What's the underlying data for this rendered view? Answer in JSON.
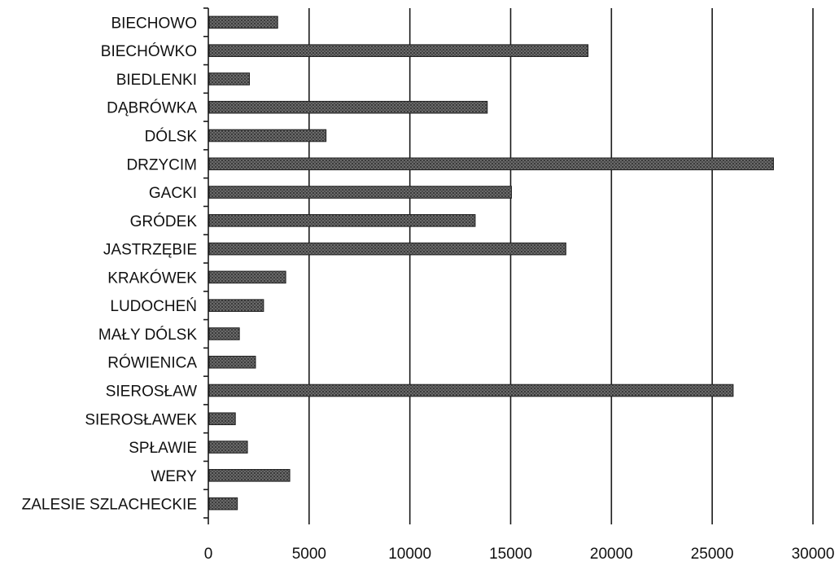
{
  "chart_data": {
    "type": "bar",
    "orientation": "horizontal",
    "title": "",
    "xlabel": "",
    "ylabel": "",
    "categories": [
      "BIECHOWO",
      "BIECHÓWKO",
      "BIEDLENKI",
      "DĄBRÓWKA",
      "DÓLSK",
      "DRZYCIM",
      "GACKI",
      "GRÓDEK",
      "JASTRZĘBIE",
      "KRAKÓWEK",
      "LUDOCHEŃ",
      "MAŁY DÓLSK",
      "RÓWIENICA",
      "SIEROSŁAW",
      "SIEROSŁAWEK",
      "SPŁAWIE",
      "WERY",
      "ZALESIE SZLACHECKIE"
    ],
    "values": [
      3400,
      18800,
      2000,
      13800,
      5800,
      28000,
      15000,
      13200,
      17700,
      3800,
      2700,
      1500,
      2300,
      26000,
      1300,
      1900,
      4000,
      1400
    ],
    "xlim": [
      0,
      30000
    ],
    "xticks": [
      "0",
      "5000",
      "10000",
      "15000",
      "20000",
      "25000",
      "30000"
    ],
    "tick_values": [
      0,
      5000,
      10000,
      15000,
      20000,
      25000,
      30000
    ],
    "grid": "vertical",
    "legend": "none",
    "colors": {
      "bar_fill": "#555555",
      "bar_stroke": "#1f1f1f",
      "grid": "#1a1a1a",
      "text": "#111111",
      "background": "#ffffff"
    }
  }
}
